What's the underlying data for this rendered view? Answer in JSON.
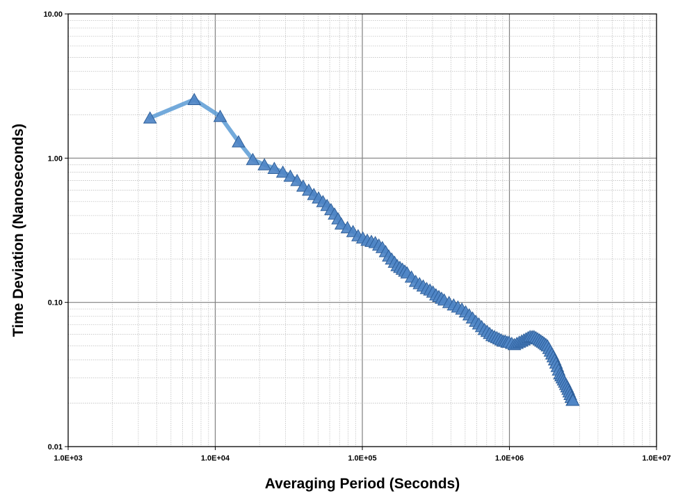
{
  "chart_data": {
    "type": "line",
    "xlabel": "Averaging Period (Seconds)",
    "ylabel": "Time Deviation (Nanoseconds)",
    "x_scale": "log",
    "y_scale": "log",
    "xlim": [
      1000,
      10000000
    ],
    "ylim": [
      0.01,
      10
    ],
    "x_ticks": [
      1000,
      10000,
      100000,
      1000000,
      10000000
    ],
    "x_tick_labels": [
      "1.0E+03",
      "1.0E+04",
      "1.0E+05",
      "1.0E+06",
      "1.0E+07"
    ],
    "y_ticks": [
      0.01,
      0.1,
      1,
      10
    ],
    "y_tick_labels": [
      "0.01",
      "0.10",
      "1.00",
      "10.00"
    ],
    "grid": true,
    "marker": "triangle",
    "colors": {
      "line": "#5b9bd5",
      "marker_fill": "#4f86c6",
      "marker_edge": "#2e5f9a"
    },
    "series": [
      {
        "x": [
          3600,
          7200,
          10800,
          14400,
          18000,
          21600,
          25200,
          28800,
          32400,
          36000,
          39600,
          43200,
          46800,
          50400,
          54000,
          57600,
          61200,
          64800,
          68400,
          72000,
          79200,
          86400,
          93600,
          100800,
          108000,
          115200,
          122400,
          129600,
          136800,
          144000,
          151200,
          158400,
          165600,
          172800,
          180000,
          187200,
          194400,
          201600,
          216000,
          230400,
          244800,
          259200,
          273600,
          288000,
          302400,
          316800,
          331200,
          345600,
          360000,
          388800,
          417600,
          446400,
          475200,
          504000,
          532800,
          561600,
          590400,
          619200,
          648000,
          676800,
          705600,
          734400,
          763200,
          792000,
          820800,
          849600,
          878400,
          907200,
          936000,
          964800,
          993600,
          1036800,
          1080000,
          1123200,
          1166400,
          1209600,
          1252800,
          1296000,
          1339200,
          1382400,
          1425600,
          1468800,
          1512000,
          1555200,
          1598400,
          1641600,
          1684800,
          1728000,
          1771200,
          1814400,
          1857600,
          1900800,
          1944000,
          1987200,
          2030400,
          2073600,
          2116800,
          2160000,
          2203200,
          2246400,
          2289600,
          2332800,
          2376000,
          2419200,
          2462400,
          2505600,
          2548800,
          2592000,
          2635200,
          2678400,
          2700000
        ],
        "y": [
          1.9,
          2.55,
          1.95,
          1.3,
          0.98,
          0.9,
          0.85,
          0.8,
          0.75,
          0.7,
          0.64,
          0.6,
          0.56,
          0.53,
          0.5,
          0.47,
          0.44,
          0.41,
          0.38,
          0.35,
          0.33,
          0.31,
          0.29,
          0.28,
          0.27,
          0.265,
          0.26,
          0.25,
          0.24,
          0.225,
          0.21,
          0.2,
          0.19,
          0.18,
          0.175,
          0.17,
          0.165,
          0.16,
          0.15,
          0.14,
          0.135,
          0.13,
          0.125,
          0.122,
          0.118,
          0.113,
          0.11,
          0.107,
          0.104,
          0.1,
          0.096,
          0.093,
          0.09,
          0.086,
          0.082,
          0.078,
          0.074,
          0.071,
          0.068,
          0.065,
          0.063,
          0.061,
          0.059,
          0.058,
          0.057,
          0.056,
          0.055,
          0.054,
          0.054,
          0.053,
          0.053,
          0.052,
          0.051,
          0.052,
          0.053,
          0.054,
          0.055,
          0.056,
          0.057,
          0.058,
          0.058,
          0.058,
          0.057,
          0.056,
          0.055,
          0.054,
          0.053,
          0.052,
          0.051,
          0.05,
          0.048,
          0.046,
          0.044,
          0.042,
          0.04,
          0.038,
          0.036,
          0.034,
          0.032,
          0.031,
          0.03,
          0.029,
          0.028,
          0.027,
          0.026,
          0.025,
          0.024,
          0.023,
          0.022,
          0.021,
          0.021
        ]
      }
    ]
  }
}
